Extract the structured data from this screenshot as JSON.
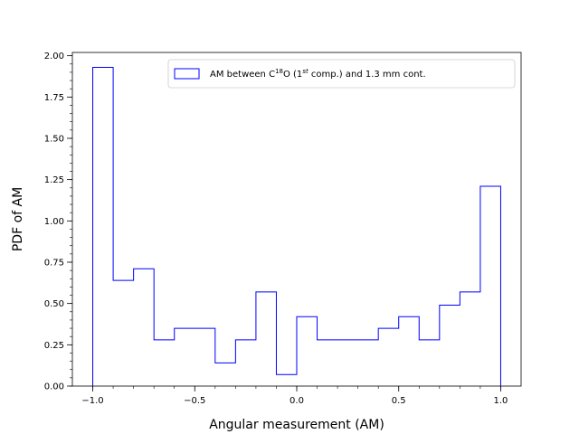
{
  "chart_data": {
    "type": "histogram-step",
    "xlabel": "Angular measurement (AM)",
    "ylabel": "PDF of AM",
    "xlim": [
      -1.1,
      1.1
    ],
    "ylim": [
      0,
      2.02
    ],
    "x_ticks": [
      -1.0,
      -0.5,
      0.0,
      0.5,
      1.0
    ],
    "x_tick_labels": [
      "−1.0",
      "−0.5",
      "0.0",
      "0.5",
      "1.0"
    ],
    "y_ticks": [
      0,
      0.25,
      0.5,
      0.75,
      1.0,
      1.25,
      1.5,
      1.75,
      2.0
    ],
    "y_tick_labels": [
      "0.00",
      "0.25",
      "0.50",
      "0.75",
      "1.00",
      "1.25",
      "1.50",
      "1.75",
      "2.00"
    ],
    "grid": false,
    "legend_position": "top-right",
    "series": [
      {
        "name_parts": [
          "AM between C",
          "18",
          "O (1",
          "st",
          " comp.) and 1.3 mm cont."
        ],
        "color": "#0000ff",
        "bin_edges": [
          -1.0,
          -0.9,
          -0.8,
          -0.7,
          -0.6,
          -0.5,
          -0.4,
          -0.3,
          -0.2,
          -0.1,
          0.0,
          0.1,
          0.2,
          0.3,
          0.4,
          0.5,
          0.6,
          0.7,
          0.8,
          0.9,
          1.0
        ],
        "values": [
          1.93,
          0.64,
          0.71,
          0.28,
          0.35,
          0.35,
          0.14,
          0.28,
          0.57,
          0.07,
          0.42,
          0.28,
          0.28,
          0.28,
          0.35,
          0.42,
          0.28,
          0.49,
          0.57,
          1.21
        ]
      }
    ]
  }
}
